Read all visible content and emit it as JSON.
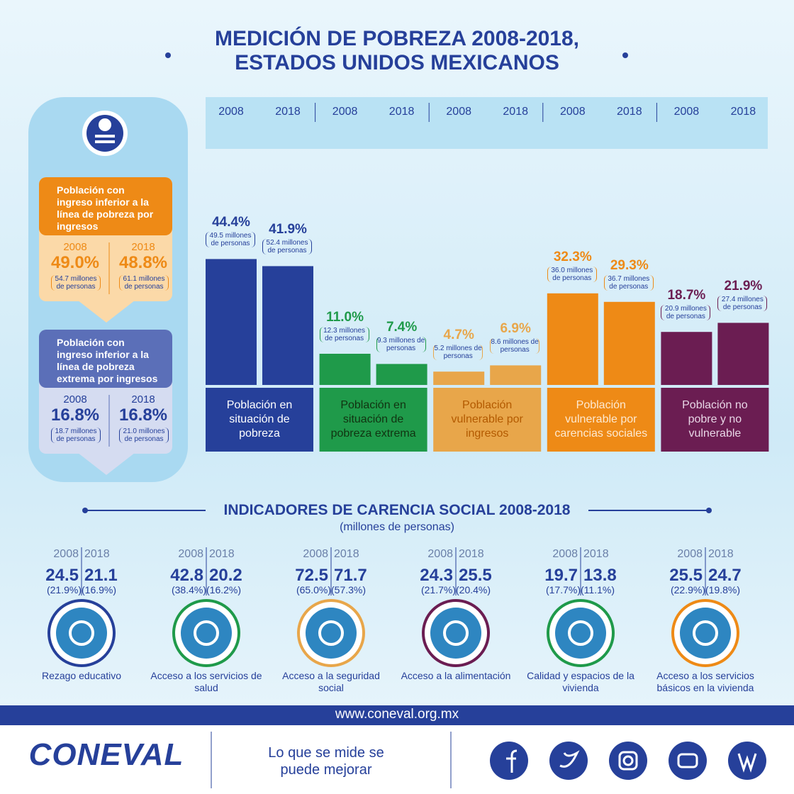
{
  "title_lines": [
    "MEDICIÓN DE POBREZA 2008-2018,",
    "ESTADOS UNIDOS MEXICANOS"
  ],
  "chart_data": {
    "type": "bar",
    "categories": [
      "Población en situación de pobreza",
      "Población en situación de pobreza extrema",
      "Población vulnerable por ingresos",
      "Población vulnerable por carencias sociales",
      "Población no pobre y no vulnerable"
    ],
    "colors": [
      "#26409a",
      "#1f9a4a",
      "#e8a64a",
      "#ee8a16",
      "#6b1d52"
    ],
    "series": [
      {
        "name": "2008",
        "values": [
          44.4,
          11.0,
          4.7,
          32.3,
          18.7
        ],
        "value_labels": [
          "44.4%",
          "11.0%",
          "4.7%",
          "32.3%",
          "18.7%"
        ],
        "people_labels": [
          "49.5 millones de personas",
          "12.3 millones de personas",
          "5.2 millones de personas",
          "36.0 millones de personas",
          "20.9 millones de personas"
        ]
      },
      {
        "name": "2018",
        "values": [
          41.9,
          7.4,
          6.9,
          29.3,
          21.9
        ],
        "value_labels": [
          "41.9%",
          "7.4%",
          "6.9%",
          "29.3%",
          "21.9%"
        ],
        "people_labels": [
          "52.4 millones de personas",
          "9.3 millones de personas",
          "8.6 millones de personas",
          "36.7 millones de personas",
          "27.4 millones de personas"
        ]
      }
    ]
  },
  "income": [
    {
      "title": "Población con ingreso inferior a la línea de pobreza por ingresos",
      "years": [
        "2008",
        "2018"
      ],
      "values": [
        "49.0%",
        "48.8%"
      ],
      "people": [
        "54.7 millones de personas",
        "61.1 millones de personas"
      ]
    },
    {
      "title": "Población con ingreso inferior a la línea de pobreza extrema por ingresos",
      "years": [
        "2008",
        "2018"
      ],
      "values": [
        "16.8%",
        "16.8%"
      ],
      "people": [
        "18.7 millones de personas",
        "21.0 millones de personas"
      ]
    }
  ],
  "indicators": {
    "title": "INDICADORES DE CARENCIA SOCIAL 2008-2018",
    "subtitle": "(millones de personas)",
    "items": [
      {
        "years": [
          "2008",
          "2018"
        ],
        "values": [
          "24.5",
          "21.1"
        ],
        "percents": [
          "(21.9%)",
          "(16.9%)"
        ],
        "name": "Rezago educativo"
      },
      {
        "years": [
          "2008",
          "2018"
        ],
        "values": [
          "42.8",
          "20.2"
        ],
        "percents": [
          "(38.4%)",
          "(16.2%)"
        ],
        "name": "Acceso a los servicios de salud"
      },
      {
        "years": [
          "2008",
          "2018"
        ],
        "values": [
          "72.5",
          "71.7"
        ],
        "percents": [
          "(65.0%)",
          "(57.3%)"
        ],
        "name": "Acceso a la seguridad social"
      },
      {
        "years": [
          "2008",
          "2018"
        ],
        "values": [
          "24.3",
          "25.5"
        ],
        "percents": [
          "(21.7%)",
          "(20.4%)"
        ],
        "name": "Acceso a la alimentación"
      },
      {
        "years": [
          "2008",
          "2018"
        ],
        "values": [
          "19.7",
          "13.8"
        ],
        "percents": [
          "(17.7%)",
          "(11.1%)"
        ],
        "name": "Calidad y espacios de la vivienda"
      },
      {
        "years": [
          "2008",
          "2018"
        ],
        "values": [
          "25.5",
          "24.7"
        ],
        "percents": [
          "(22.9%)",
          "(19.8%)"
        ],
        "name": "Acceso a los servicios básicos en la vivienda"
      }
    ]
  },
  "footer": {
    "url": "www.coneval.org.mx",
    "logo": "CONEVAL",
    "slogan": "Lo que se mide se puede mejorar"
  }
}
